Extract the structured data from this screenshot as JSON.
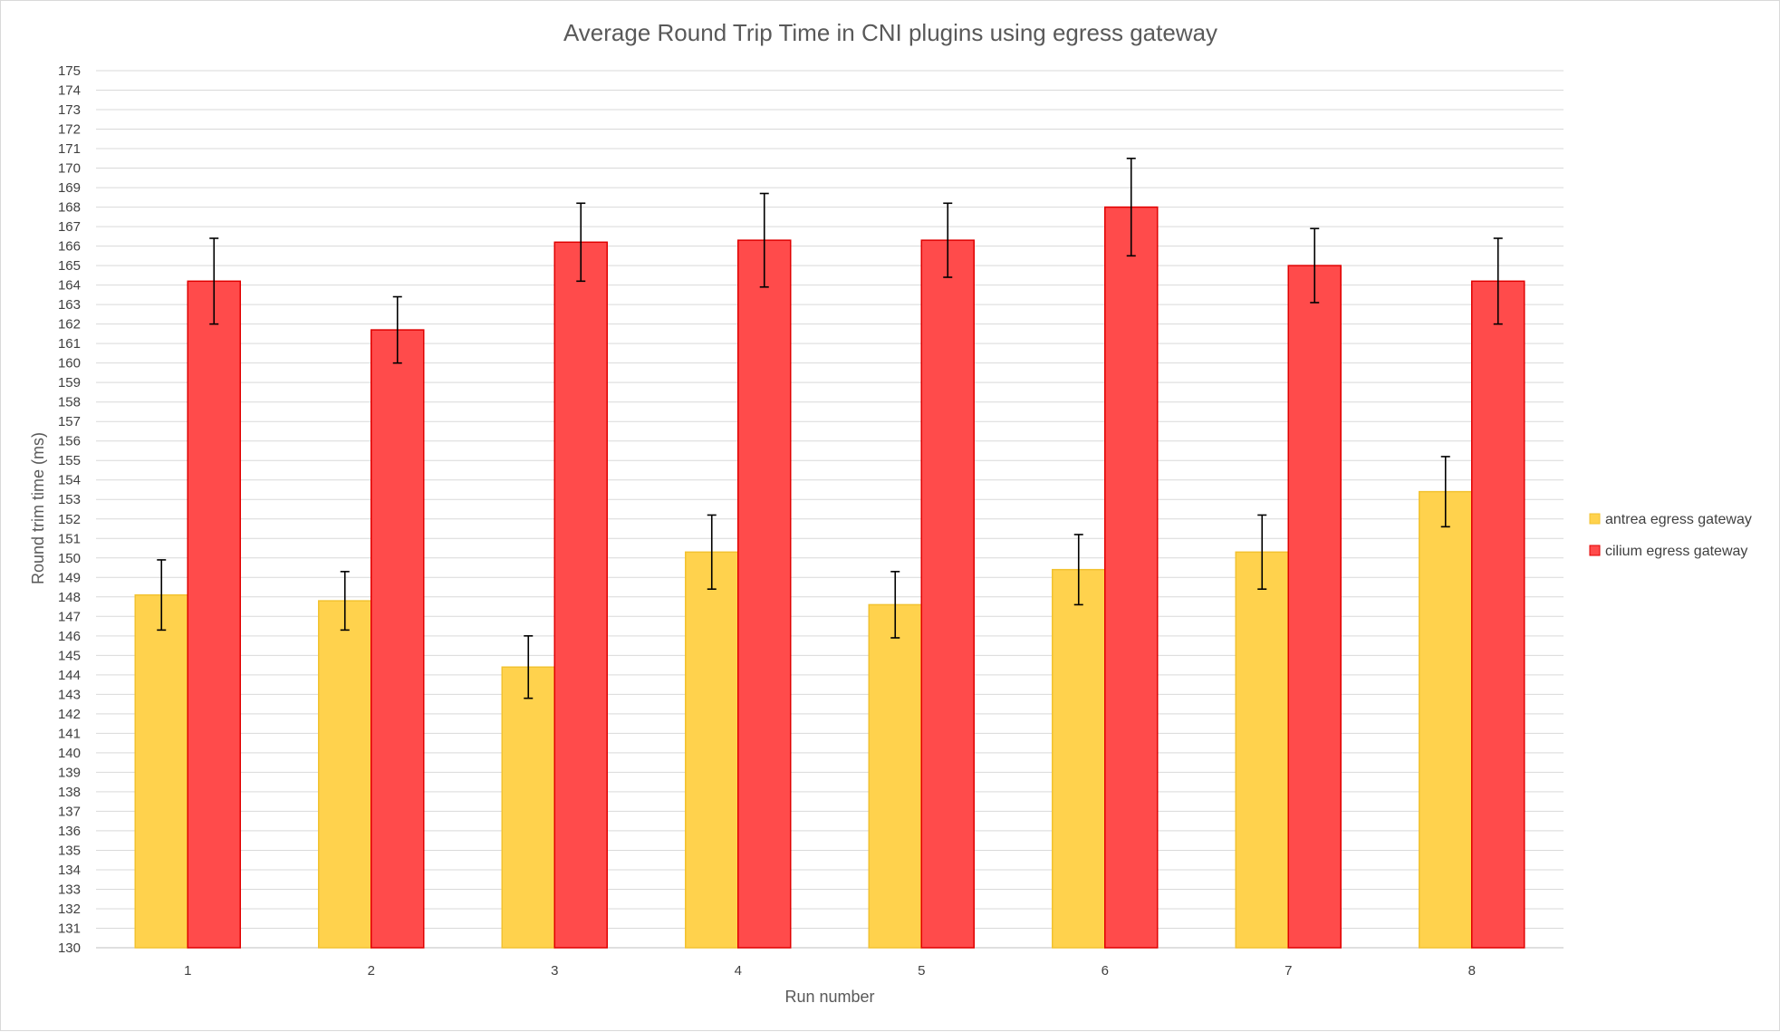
{
  "chart_data": {
    "type": "bar",
    "title": "Average Round Trip Time in CNI plugins using egress gateway",
    "xlabel": "Run number",
    "ylabel": "Round trim time (ms)",
    "categories": [
      "1",
      "2",
      "3",
      "4",
      "5",
      "6",
      "7",
      "8"
    ],
    "ylim": [
      130,
      175
    ],
    "ytick_step": 1,
    "grid": true,
    "legend_position": "right",
    "series": [
      {
        "name": "antrea egress gateway",
        "color": "#FFD24D",
        "edge_color": "#F2C230",
        "values": [
          148.1,
          147.8,
          144.4,
          150.3,
          147.6,
          149.4,
          150.3,
          153.4
        ],
        "error": [
          1.8,
          1.5,
          1.6,
          1.9,
          1.7,
          1.8,
          1.9,
          1.8
        ]
      },
      {
        "name": "cilium egress gateway",
        "color": "#FF4B4B",
        "edge_color": "#E00000",
        "values": [
          164.2,
          161.7,
          166.2,
          166.3,
          166.3,
          168.0,
          165.0,
          164.2
        ],
        "error": [
          2.2,
          1.7,
          2.0,
          2.4,
          1.9,
          2.5,
          1.9,
          2.2
        ]
      }
    ]
  }
}
